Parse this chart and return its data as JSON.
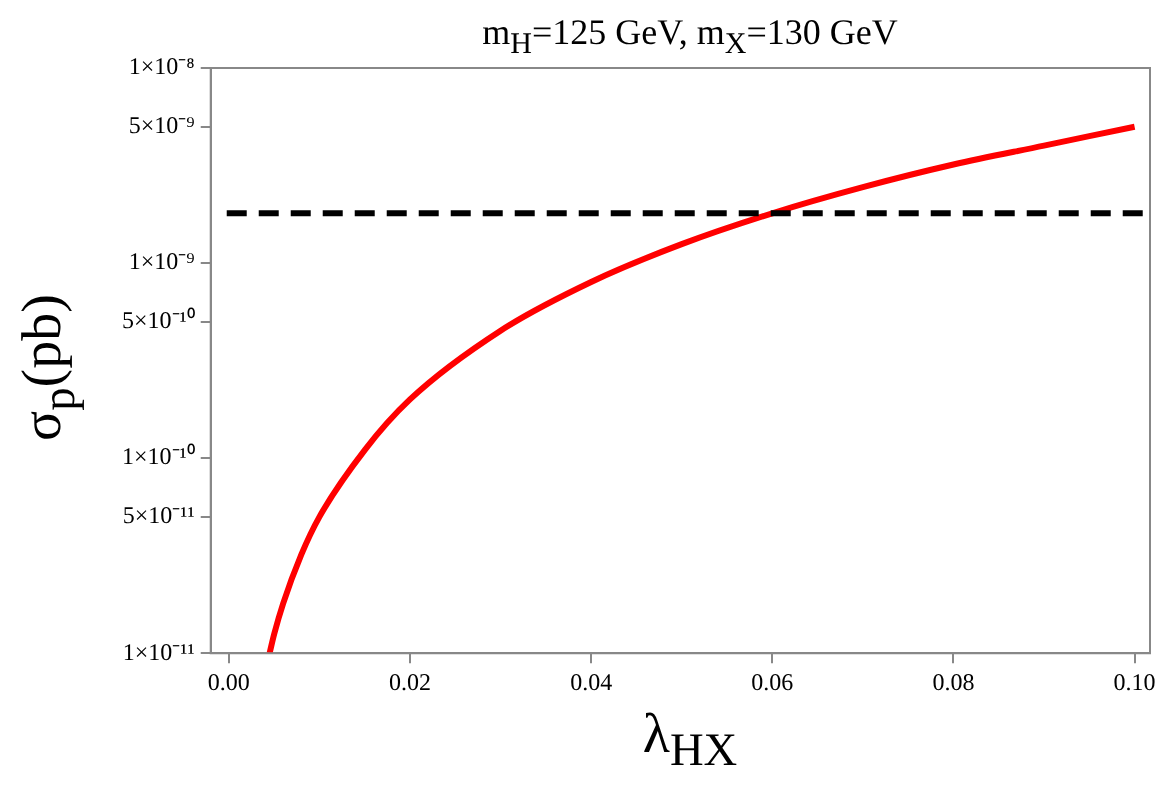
{
  "chart_data": {
    "type": "line",
    "title": "m$_{H}$=125 GeV, m$_{X}$=130 GeV",
    "xlabel": "λ$_{HX}$",
    "ylabel": "σ$_{p}$(pb)",
    "log": "y",
    "grid": false,
    "legend": false,
    "marker": "none",
    "line_style": "solid",
    "xlim": [
      -0.002,
      0.1017
    ],
    "xticks": [
      {
        "value": 0,
        "label": "0.00"
      },
      {
        "value": 0.02,
        "label": "0.02"
      },
      {
        "value": 0.04,
        "label": "0.04"
      },
      {
        "value": 0.06,
        "label": "0.06"
      },
      {
        "value": 0.08,
        "label": "0.08"
      },
      {
        "value": 0.1,
        "label": "0.10"
      }
    ],
    "ylim": [
      1e-11,
      1e-08
    ],
    "yticks": [
      {
        "value": 1e-11,
        "label": "1×10⁻¹¹"
      },
      {
        "value": 5e-11,
        "label": "5×10⁻¹¹"
      },
      {
        "value": 1e-10,
        "label": "1×10⁻¹⁰"
      },
      {
        "value": 5e-10,
        "label": "5×10⁻¹⁰"
      },
      {
        "value": 1e-09,
        "label": "1×10⁻⁹"
      },
      {
        "value": 5e-09,
        "label": "5×10⁻⁹"
      },
      {
        "value": 1e-08,
        "label": "1×10⁻⁸"
      }
    ],
    "series": [
      {
        "color": "#ff0000",
        "x": [
          0.0045,
          0.005,
          0.006,
          0.008,
          0.01,
          0.015,
          0.02,
          0.03,
          0.04,
          0.05,
          0.06,
          0.07,
          0.08,
          0.09,
          0.1
        ],
        "values": [
          1e-11,
          1.25e-11,
          1.8e-11,
          3.2e-11,
          5e-11,
          1.1e-10,
          2e-10,
          4.5e-10,
          8e-10,
          1.25e-09,
          1.8e-09,
          2.45e-09,
          3.2e-09,
          4e-09,
          5e-09
        ]
      }
    ],
    "ref_lines": [
      {
        "axis": "y",
        "value": 1.8e-09,
        "color": "#000000",
        "line_style": "dashed"
      }
    ]
  }
}
